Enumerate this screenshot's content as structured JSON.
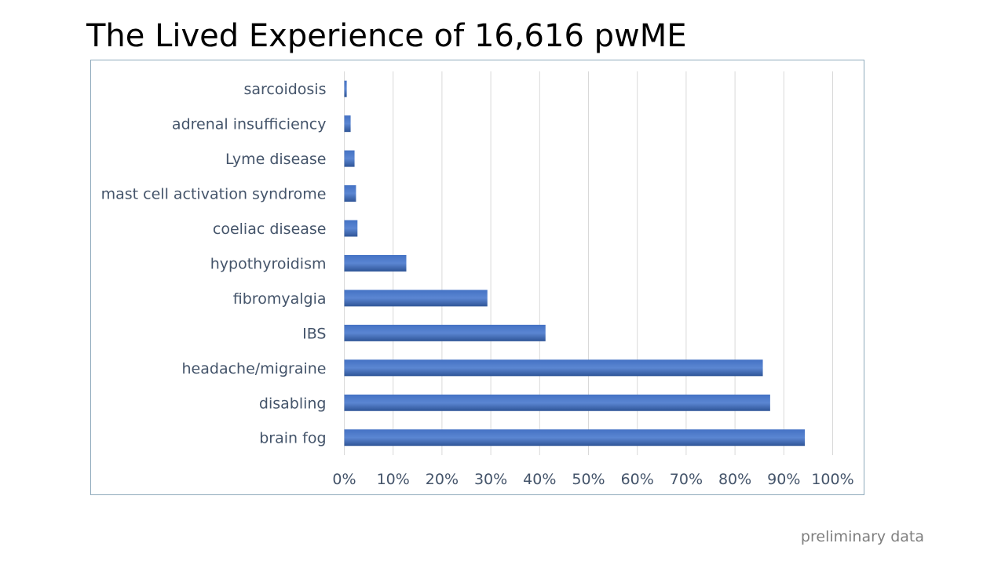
{
  "slide": {
    "title": "The Lived Experience of 16,616 pwME",
    "footnote": "preliminary data"
  },
  "colors": {
    "bar": "#4472c4",
    "bar_dark": "#2f5597",
    "gridline": "#d9d9d9",
    "label": "#44546a",
    "frame": "#8faabc"
  },
  "chart_data": {
    "type": "bar",
    "orientation": "horizontal",
    "title": "",
    "xlabel": "",
    "ylabel": "",
    "categories": [
      "sarcoidosis",
      "adrenal insufficiency",
      "Lyme disease",
      "mast cell activation syndrome",
      "coeliac disease",
      "hypothyroidism",
      "fibromyalgia",
      "IBS",
      "headache/migraine",
      "disabling",
      "brain fog"
    ],
    "values": [
      0.5,
      1.3,
      2.1,
      2.4,
      2.7,
      12.7,
      29.3,
      41.2,
      85.7,
      87.2,
      94.3
    ],
    "xlim": [
      0,
      100
    ],
    "xticks": [
      0,
      10,
      20,
      30,
      40,
      50,
      60,
      70,
      80,
      90,
      100
    ],
    "tick_labels": [
      "0%",
      "10%",
      "20%",
      "30%",
      "40%",
      "50%",
      "60%",
      "70%",
      "80%",
      "90%",
      "100%"
    ],
    "grid": "vertical",
    "legend": "none"
  }
}
